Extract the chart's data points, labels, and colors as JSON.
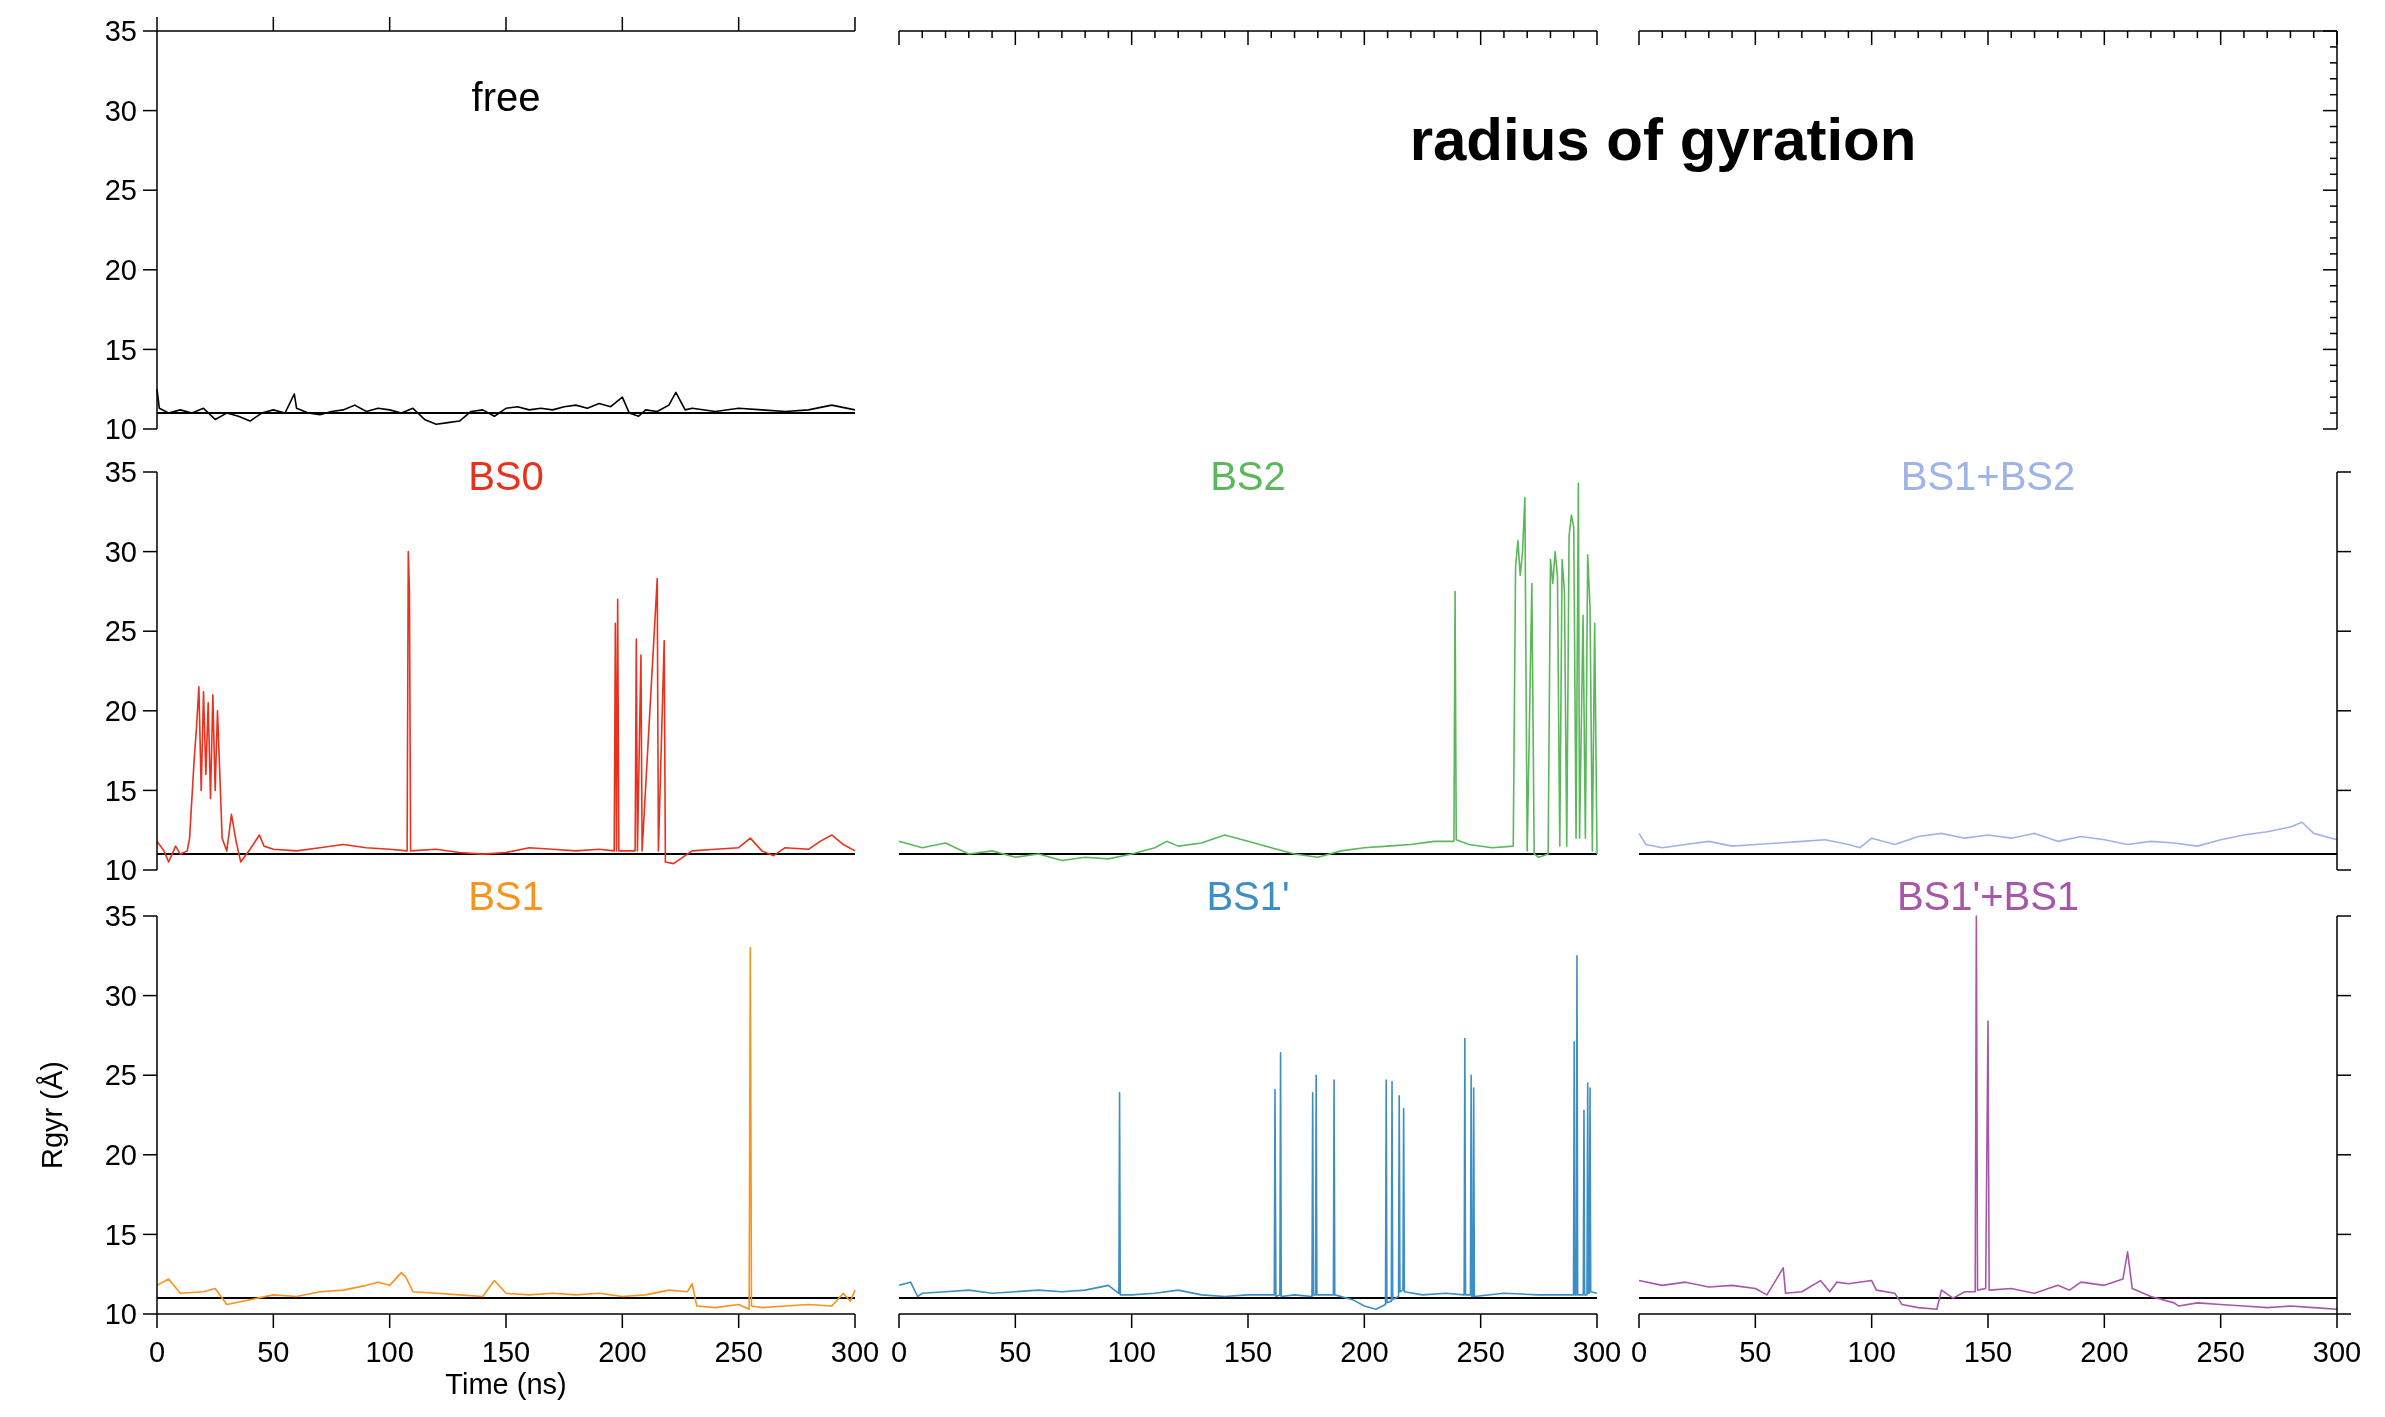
{
  "chart_data": [
    {
      "type": "line",
      "xlim": [
        0,
        300
      ],
      "xticks": [
        0,
        50,
        100,
        150,
        200,
        250,
        300
      ],
      "ylim": [
        10,
        35
      ],
      "yticks": [
        10,
        15,
        20,
        25,
        30,
        35
      ],
      "tick_labels": "y",
      "ref_lines": [
        {
          "axis": "y",
          "value": 11,
          "color": "#000000"
        }
      ],
      "series": [
        {
          "name": "free",
          "color": "#000000",
          "x": [
            0,
            1,
            5,
            10,
            15,
            20,
            25,
            30,
            35,
            40,
            45,
            50,
            55,
            59,
            60,
            65,
            70,
            75,
            80,
            85,
            90,
            95,
            100,
            105,
            110,
            115,
            120,
            125,
            130,
            135,
            140,
            145,
            150,
            155,
            160,
            165,
            170,
            175,
            180,
            185,
            190,
            195,
            200,
            203,
            207,
            210,
            215,
            220,
            223,
            227,
            230,
            240,
            250,
            260,
            270,
            280,
            290,
            300
          ],
          "values": [
            12.5,
            11.3,
            11.0,
            11.2,
            11.0,
            11.3,
            10.6,
            11.0,
            10.8,
            10.5,
            11.0,
            11.2,
            11.0,
            12.2,
            11.3,
            11.0,
            10.9,
            11.1,
            11.2,
            11.5,
            11.1,
            11.3,
            11.2,
            11.0,
            11.3,
            10.6,
            10.3,
            10.4,
            10.5,
            11.1,
            11.2,
            10.8,
            11.3,
            11.4,
            11.2,
            11.3,
            11.2,
            11.4,
            11.5,
            11.3,
            11.6,
            11.4,
            12.0,
            11.0,
            10.8,
            11.2,
            11.1,
            11.5,
            12.3,
            11.2,
            11.3,
            11.1,
            11.3,
            11.2,
            11.1,
            11.2,
            11.5,
            11.2
          ]
        }
      ]
    },
    {
      "type": "other",
      "title": "radius of gyration"
    },
    {
      "type": "line",
      "xlim": [
        0,
        300
      ],
      "ylim": [
        10,
        35
      ],
      "yticks": [
        10,
        15,
        20,
        25,
        30,
        35
      ],
      "tick_labels": "y",
      "ref_lines": [
        {
          "axis": "y",
          "value": 11,
          "color": "#000000"
        }
      ],
      "series": [
        {
          "name": "BS0",
          "color": "#e8321e",
          "x": [
            0,
            3,
            5,
            8,
            10,
            13,
            14,
            16,
            17,
            18,
            19,
            20,
            21,
            22,
            23,
            24,
            25,
            26,
            27,
            28,
            30,
            32,
            34,
            36,
            40,
            44,
            46,
            50,
            60,
            70,
            80,
            90,
            100,
            107.5,
            108,
            108.5,
            109,
            120,
            130,
            140,
            150,
            160,
            170,
            180,
            190,
            196.5,
            197,
            197.5,
            198,
            198.5,
            205.5,
            206,
            206.5,
            208,
            208.5,
            215,
            215.5,
            218,
            218.5,
            222,
            230,
            240,
            250,
            255,
            260,
            265,
            270,
            280,
            285,
            290,
            295,
            300
          ],
          "values": [
            11.8,
            11.2,
            10.5,
            11.5,
            11.0,
            11.2,
            12.0,
            17,
            19,
            21.5,
            15,
            21.2,
            16,
            20.5,
            14.5,
            21,
            15,
            20,
            16,
            12,
            11.2,
            13.5,
            11.8,
            10.5,
            11.3,
            12.2,
            11.5,
            11.3,
            11.2,
            11.4,
            11.6,
            11.4,
            11.3,
            11.2,
            30,
            27.5,
            11.2,
            11.3,
            11.1,
            11.0,
            11.1,
            11.4,
            11.3,
            11.2,
            11.3,
            11.2,
            25.5,
            11.2,
            27,
            11.2,
            11.2,
            24.5,
            11.2,
            23.5,
            11.2,
            28.3,
            11.2,
            24.4,
            10.5,
            10.4,
            11.2,
            11.3,
            11.4,
            12.0,
            11.2,
            10.9,
            11.4,
            11.3,
            11.8,
            12.2,
            11.6,
            11.2
          ]
        }
      ]
    },
    {
      "type": "line",
      "xlim": [
        0,
        300
      ],
      "ylim": [
        10,
        35
      ],
      "tick_labels": false,
      "ref_lines": [
        {
          "axis": "y",
          "value": 11,
          "color": "#000000"
        }
      ],
      "series": [
        {
          "name": "BS2",
          "color": "#5bb85a",
          "x": [
            0,
            10,
            20,
            30,
            40,
            50,
            60,
            70,
            80,
            90,
            100,
            110,
            115,
            120,
            130,
            140,
            150,
            160,
            170,
            180,
            190,
            200,
            210,
            220,
            230,
            238.5,
            239,
            239.5,
            245,
            255,
            264,
            265,
            266,
            267,
            268,
            269,
            270,
            272,
            273,
            275,
            279,
            280,
            281,
            282,
            283,
            284,
            285,
            286,
            287,
            288,
            289,
            290,
            291,
            292,
            292.5,
            294,
            295,
            296,
            297,
            298,
            299,
            300
          ],
          "values": [
            11.8,
            11.4,
            11.7,
            11.0,
            11.2,
            10.8,
            11.0,
            10.6,
            10.8,
            10.7,
            11.0,
            11.4,
            11.8,
            11.5,
            11.7,
            12.2,
            11.8,
            11.4,
            11.0,
            10.8,
            11.2,
            11.4,
            11.5,
            11.6,
            11.8,
            11.8,
            27.5,
            11.9,
            11.6,
            11.4,
            11.5,
            29,
            30.7,
            28.5,
            30.0,
            33.4,
            11.2,
            28,
            11.0,
            10.8,
            11.0,
            29.5,
            28,
            30,
            28.5,
            11.5,
            29.5,
            27.5,
            11.5,
            31,
            32.3,
            31.5,
            12.0,
            34.3,
            12,
            26,
            12,
            29.8,
            26.5,
            11.2,
            25.5,
            11.0
          ]
        }
      ]
    },
    {
      "type": "line",
      "xlim": [
        0,
        300
      ],
      "ylim": [
        10,
        35
      ],
      "yticks": [
        10,
        15,
        20,
        25,
        30,
        35
      ],
      "tick_labels": false,
      "ref_lines": [
        {
          "axis": "y",
          "value": 11,
          "color": "#000000"
        }
      ],
      "series": [
        {
          "name": "BS1+BS2",
          "color": "#9fb3e8",
          "x": [
            0,
            3,
            10,
            20,
            30,
            40,
            50,
            60,
            70,
            80,
            90,
            95,
            100,
            110,
            120,
            130,
            140,
            150,
            160,
            170,
            180,
            190,
            200,
            210,
            220,
            230,
            240,
            250,
            260,
            270,
            280,
            285,
            290,
            300
          ],
          "values": [
            12.3,
            11.6,
            11.4,
            11.6,
            11.8,
            11.5,
            11.6,
            11.7,
            11.8,
            11.9,
            11.6,
            11.4,
            12.0,
            11.6,
            12.1,
            12.3,
            12.0,
            12.2,
            12.0,
            12.3,
            11.8,
            12.1,
            11.9,
            11.6,
            11.8,
            11.7,
            11.5,
            11.9,
            12.2,
            12.4,
            12.7,
            13.0,
            12.3,
            11.9
          ]
        }
      ]
    },
    {
      "type": "line",
      "xlim": [
        0,
        300
      ],
      "xticks": [
        0,
        50,
        100,
        150,
        200,
        250,
        300
      ],
      "ylim": [
        10,
        35
      ],
      "yticks": [
        10,
        15,
        20,
        25,
        30,
        35
      ],
      "xlabel": "Time (ns)",
      "ylabel": "Rgyr (Å)",
      "ref_lines": [
        {
          "axis": "y",
          "value": 11,
          "color": "#000000"
        }
      ],
      "series": [
        {
          "name": "BS1",
          "color": "#f7931e",
          "x": [
            0,
            5,
            10,
            20,
            25,
            30,
            40,
            50,
            60,
            70,
            80,
            90,
            95,
            100,
            105,
            107,
            110,
            120,
            130,
            140,
            145,
            150,
            160,
            170,
            180,
            190,
            200,
            210,
            220,
            228,
            230,
            232,
            240,
            250,
            254.5,
            255,
            255.5,
            260,
            270,
            280,
            290,
            295,
            298,
            300
          ],
          "values": [
            11.8,
            12.2,
            11.3,
            11.4,
            11.6,
            10.6,
            10.9,
            11.2,
            11.1,
            11.4,
            11.5,
            11.8,
            12.0,
            11.8,
            12.6,
            12.3,
            11.4,
            11.3,
            11.2,
            11.1,
            12.1,
            11.3,
            11.2,
            11.3,
            11.2,
            11.3,
            11.1,
            11.2,
            11.5,
            11.4,
            11.9,
            10.5,
            10.4,
            10.6,
            10.3,
            33,
            10.5,
            10.4,
            10.5,
            10.6,
            10.5,
            11.3,
            10.8,
            11.5
          ]
        }
      ]
    },
    {
      "type": "line",
      "xlim": [
        0,
        300
      ],
      "xticks": [
        0,
        50,
        100,
        150,
        200,
        250,
        300
      ],
      "ylim": [
        10,
        35
      ],
      "tick_labels": "x",
      "ref_lines": [
        {
          "axis": "y",
          "value": 11,
          "color": "#000000"
        }
      ],
      "series": [
        {
          "name": "BS1'",
          "color": "#3d8ec4",
          "x": [
            0,
            5,
            8,
            10,
            20,
            30,
            40,
            50,
            60,
            70,
            80,
            90,
            94.5,
            94.8,
            95.1,
            100,
            110,
            120,
            130,
            140,
            150,
            161.3,
            161.6,
            162,
            163.7,
            164,
            164.3,
            170,
            177.5,
            177.8,
            178.1,
            179,
            179.3,
            179.6,
            186.7,
            187,
            187.3,
            195,
            200,
            205,
            209.1,
            209.4,
            209.7,
            211.6,
            211.9,
            212.2,
            214.7,
            215,
            215.3,
            216.6,
            216.9,
            217.2,
            225,
            235,
            242.9,
            243.2,
            243.5,
            245.6,
            245.9,
            246.2,
            246.7,
            247,
            247.3,
            260,
            275,
            289.9,
            290.2,
            290.5,
            291.1,
            291.4,
            291.7,
            294.1,
            294.4,
            294.7,
            295.7,
            296,
            296.3,
            296.7,
            297,
            297.3,
            300
          ],
          "values": [
            11.8,
            12.0,
            11.1,
            11.3,
            11.4,
            11.5,
            11.3,
            11.4,
            11.5,
            11.4,
            11.5,
            11.8,
            11.3,
            23.9,
            11.2,
            11.2,
            11.3,
            11.5,
            11.2,
            11.1,
            11.2,
            11.2,
            24.1,
            11.1,
            11.2,
            26.4,
            11.1,
            11.2,
            11.1,
            23.9,
            11.2,
            11.2,
            25.0,
            11.2,
            11.2,
            24.7,
            11.2,
            10.9,
            10.5,
            10.3,
            10.6,
            24.7,
            10.7,
            10.8,
            24.6,
            10.9,
            11.1,
            23.7,
            11.4,
            11.5,
            22.9,
            11.4,
            11.2,
            11.3,
            11.2,
            27.3,
            11.2,
            11.2,
            25.0,
            11.1,
            11.1,
            24.2,
            11.1,
            11.3,
            11.2,
            11.2,
            27.1,
            11.2,
            11.2,
            32.5,
            11.2,
            11.2,
            22.8,
            11.2,
            11.2,
            24.5,
            11.3,
            11.3,
            24.2,
            11.4,
            11.3
          ]
        }
      ]
    },
    {
      "type": "line",
      "xlim": [
        0,
        300
      ],
      "xticks": [
        0,
        50,
        100,
        150,
        200,
        250,
        300
      ],
      "ylim": [
        10,
        35
      ],
      "yticks": [
        10,
        15,
        20,
        25,
        30,
        35
      ],
      "tick_labels": "x",
      "ref_lines": [
        {
          "axis": "y",
          "value": 11,
          "color": "#000000"
        }
      ],
      "series": [
        {
          "name": "BS1'+BS1",
          "color": "#a757a8",
          "x": [
            0,
            10,
            20,
            30,
            40,
            50,
            55,
            62,
            63,
            70,
            78,
            82,
            85,
            90,
            100,
            102,
            110,
            113,
            120,
            128,
            130,
            135,
            140,
            144.5,
            145,
            145.5,
            149,
            150,
            150.5,
            160,
            170,
            180,
            185,
            190,
            200,
            208,
            210,
            212,
            220,
            230,
            232,
            240,
            250,
            260,
            270,
            280,
            290,
            300
          ],
          "values": [
            12.1,
            11.8,
            12.0,
            11.7,
            11.8,
            11.6,
            11.2,
            12.9,
            11.3,
            11.4,
            12.1,
            11.4,
            12.0,
            11.9,
            12.1,
            11.5,
            11.3,
            10.6,
            10.4,
            10.3,
            11.5,
            11.0,
            11.4,
            11.4,
            35,
            11.5,
            11.6,
            28.4,
            11.5,
            11.6,
            11.3,
            11.8,
            11.5,
            12.0,
            11.8,
            12.2,
            13.9,
            11.6,
            11.1,
            10.7,
            10.5,
            10.7,
            10.6,
            10.5,
            10.4,
            10.5,
            10.4,
            10.3
          ]
        }
      ]
    }
  ]
}
